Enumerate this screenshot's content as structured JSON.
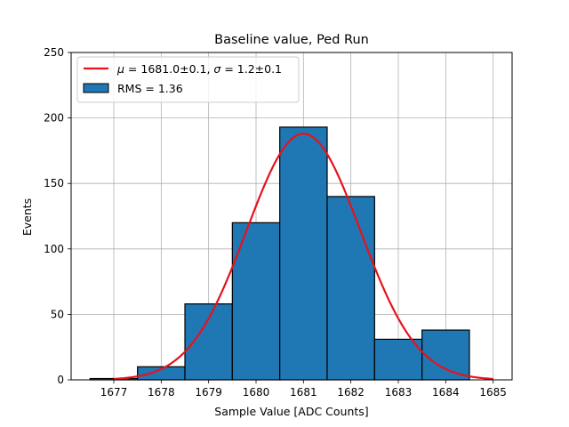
{
  "chart_data": {
    "type": "bar",
    "title": "Baseline value, Ped Run",
    "xlabel": "Sample Value [ADC Counts]",
    "ylabel": "Events",
    "xlim": [
      1676.1,
      1685.4
    ],
    "ylim": [
      0,
      250
    ],
    "xticks": [
      1677,
      1678,
      1679,
      1680,
      1681,
      1682,
      1683,
      1684,
      1685
    ],
    "yticks": [
      0,
      50,
      100,
      150,
      200,
      250
    ],
    "grid": true,
    "legend_position": "top-left",
    "histogram": {
      "name": "RMS = 1.36",
      "color": "#1f77b4",
      "edgecolor": "#000000",
      "bins": [
        {
          "x0": 1676.5,
          "x1": 1677.5,
          "count": 1
        },
        {
          "x0": 1677.5,
          "x1": 1678.5,
          "count": 10
        },
        {
          "x0": 1678.5,
          "x1": 1679.5,
          "count": 58
        },
        {
          "x0": 1679.5,
          "x1": 1680.5,
          "count": 120
        },
        {
          "x0": 1680.5,
          "x1": 1681.5,
          "count": 193
        },
        {
          "x0": 1681.5,
          "x1": 1682.5,
          "count": 140
        },
        {
          "x0": 1682.5,
          "x1": 1683.5,
          "count": 31
        },
        {
          "x0": 1683.5,
          "x1": 1684.5,
          "count": 38
        }
      ]
    },
    "fit": {
      "legend_mu": "μ",
      "legend_text_1": " = 1681.0±0.1, ",
      "legend_sigma": "σ",
      "legend_text_2": " = 1.2±0.1",
      "color": "#e8121a",
      "mu": 1681.0,
      "sigma": 1.2,
      "amplitude": 188,
      "x_range": [
        1677.0,
        1685.0
      ]
    }
  }
}
